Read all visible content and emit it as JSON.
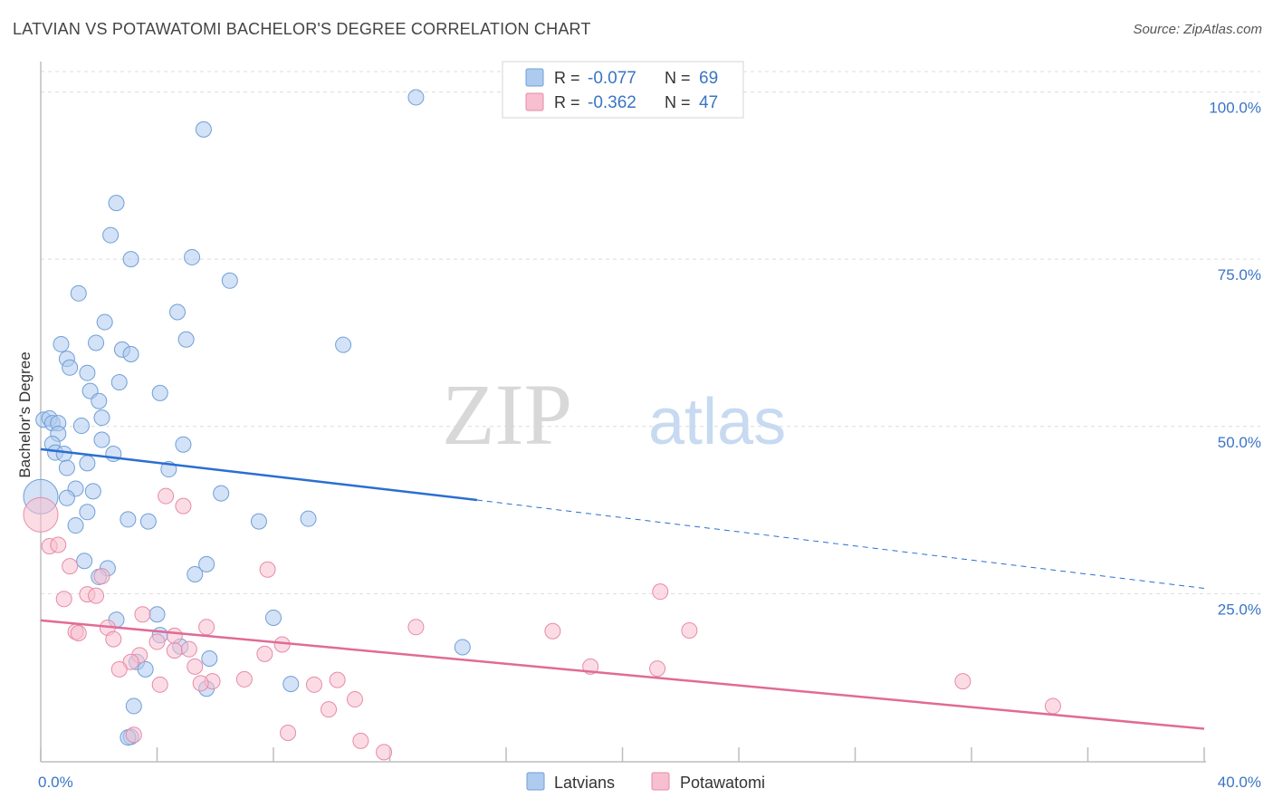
{
  "header": {
    "title": "LATVIAN VS POTAWATOMI BACHELOR'S DEGREE CORRELATION CHART",
    "source": "Source: ZipAtlas.com"
  },
  "watermark": {
    "part1": "ZIP",
    "part2": "atlas"
  },
  "legend_box": {
    "rows": [
      {
        "r_label": "R =",
        "r_value": "-0.077",
        "n_label": "N =",
        "n_value": "69"
      },
      {
        "r_label": "R =",
        "r_value": "-0.362",
        "n_label": "N =",
        "n_value": "47"
      }
    ]
  },
  "bottom_legend": {
    "items": [
      "Latvians",
      "Potawatomi"
    ]
  },
  "colors": {
    "latvians_fill": "#aecbef",
    "latvians_stroke": "#6f9fd8",
    "latvians_line": "#2a6fd0",
    "potawatomi_fill": "#f7bfd0",
    "potawatomi_stroke": "#e88aa8",
    "potawatomi_line": "#e06b96",
    "value_text": "#3a75c4",
    "grid": "#dcdcdc"
  },
  "chart_data": {
    "type": "scatter",
    "title": "LATVIAN VS POTAWATOMI BACHELOR'S DEGREE CORRELATION CHART",
    "xlabel": "",
    "ylabel": "Bachelor's Degree",
    "xlim": [
      0,
      40
    ],
    "ylim": [
      0,
      104
    ],
    "x_tick_labels": [
      "0.0%",
      "40.0%"
    ],
    "y_ticks": [
      25,
      50,
      75,
      100
    ],
    "y_tick_labels": [
      "25.0%",
      "50.0%",
      "75.0%",
      "100.0%"
    ],
    "grid": true,
    "legend_position": "top-center",
    "series": [
      {
        "name": "Latvians",
        "R": -0.077,
        "N": 69,
        "trend": {
          "x0": 0,
          "y0": 46.6,
          "x1": 15,
          "y1": 39.0,
          "dash_to_x": 40,
          "dash_to_y": 25.8
        },
        "points": [
          [
            12.9,
            99.2
          ],
          [
            5.6,
            94.4
          ],
          [
            2.6,
            83.4
          ],
          [
            2.4,
            78.6
          ],
          [
            3.1,
            75.0
          ],
          [
            5.2,
            75.3
          ],
          [
            6.5,
            71.8
          ],
          [
            1.3,
            69.9
          ],
          [
            4.7,
            67.1
          ],
          [
            2.2,
            65.6
          ],
          [
            0.7,
            62.3
          ],
          [
            1.9,
            62.5
          ],
          [
            5.0,
            63.0
          ],
          [
            10.4,
            62.2
          ],
          [
            2.8,
            61.5
          ],
          [
            3.1,
            60.8
          ],
          [
            0.9,
            60.1
          ],
          [
            1.0,
            58.8
          ],
          [
            1.6,
            58.0
          ],
          [
            2.7,
            56.6
          ],
          [
            1.7,
            55.3
          ],
          [
            4.1,
            55.0
          ],
          [
            2.0,
            53.8
          ],
          [
            0.1,
            51.0
          ],
          [
            0.3,
            51.2
          ],
          [
            2.1,
            51.3
          ],
          [
            0.4,
            50.5
          ],
          [
            0.6,
            50.5
          ],
          [
            1.4,
            50.1
          ],
          [
            0.6,
            48.9
          ],
          [
            2.1,
            48.0
          ],
          [
            0.4,
            47.4
          ],
          [
            4.9,
            47.3
          ],
          [
            0.5,
            46.1
          ],
          [
            0.8,
            45.9
          ],
          [
            2.5,
            45.9
          ],
          [
            1.6,
            44.5
          ],
          [
            0.9,
            43.8
          ],
          [
            4.4,
            43.6
          ],
          [
            1.2,
            40.7
          ],
          [
            1.8,
            40.3
          ],
          [
            6.2,
            40.0
          ],
          [
            0.9,
            39.3
          ],
          [
            1.6,
            37.2
          ],
          [
            3.0,
            36.1
          ],
          [
            3.7,
            35.8
          ],
          [
            7.5,
            35.8
          ],
          [
            9.2,
            36.2
          ],
          [
            1.2,
            35.2
          ],
          [
            1.5,
            29.9
          ],
          [
            5.7,
            29.4
          ],
          [
            2.3,
            28.8
          ],
          [
            2.0,
            27.5
          ],
          [
            5.3,
            27.9
          ],
          [
            4.0,
            21.9
          ],
          [
            8.0,
            21.4
          ],
          [
            2.6,
            21.1
          ],
          [
            4.1,
            18.8
          ],
          [
            4.8,
            17.1
          ],
          [
            14.5,
            17.0
          ],
          [
            5.8,
            15.3
          ],
          [
            3.3,
            14.8
          ],
          [
            3.6,
            13.7
          ],
          [
            8.6,
            11.5
          ],
          [
            5.7,
            10.8
          ],
          [
            3.2,
            8.2
          ],
          [
            3.1,
            3.6
          ],
          [
            3.0,
            3.5
          ],
          [
            0,
            39.5
          ]
        ]
      },
      {
        "name": "Potawatomi",
        "R": -0.362,
        "N": 47,
        "trend": {
          "x0": 0,
          "y0": 21.0,
          "x1": 40,
          "y1": 4.8
        },
        "points": [
          [
            0,
            36.8
          ],
          [
            4.3,
            39.6
          ],
          [
            4.9,
            38.1
          ],
          [
            0.3,
            32.1
          ],
          [
            0.6,
            32.3
          ],
          [
            1.0,
            29.1
          ],
          [
            7.8,
            28.6
          ],
          [
            2.1,
            27.6
          ],
          [
            0.8,
            24.2
          ],
          [
            1.6,
            24.9
          ],
          [
            1.9,
            24.7
          ],
          [
            21.3,
            25.3
          ],
          [
            3.5,
            21.9
          ],
          [
            5.7,
            20.0
          ],
          [
            12.9,
            20.0
          ],
          [
            17.6,
            19.4
          ],
          [
            22.3,
            19.5
          ],
          [
            2.3,
            19.9
          ],
          [
            1.2,
            19.3
          ],
          [
            1.3,
            19.1
          ],
          [
            4.6,
            18.7
          ],
          [
            2.5,
            18.2
          ],
          [
            4.0,
            17.8
          ],
          [
            8.3,
            17.4
          ],
          [
            4.6,
            16.5
          ],
          [
            5.1,
            16.7
          ],
          [
            7.7,
            16.0
          ],
          [
            3.4,
            15.8
          ],
          [
            3.1,
            14.8
          ],
          [
            5.3,
            14.1
          ],
          [
            18.9,
            14.1
          ],
          [
            21.2,
            13.8
          ],
          [
            2.7,
            13.7
          ],
          [
            7.0,
            12.2
          ],
          [
            5.9,
            11.9
          ],
          [
            10.2,
            12.1
          ],
          [
            5.5,
            11.6
          ],
          [
            4.1,
            11.4
          ],
          [
            9.4,
            11.4
          ],
          [
            31.7,
            11.9
          ],
          [
            10.8,
            9.2
          ],
          [
            9.9,
            7.7
          ],
          [
            34.8,
            8.2
          ],
          [
            8.5,
            4.2
          ],
          [
            3.2,
            3.9
          ],
          [
            11.0,
            3.0
          ],
          [
            11.8,
            1.3
          ]
        ]
      }
    ]
  }
}
